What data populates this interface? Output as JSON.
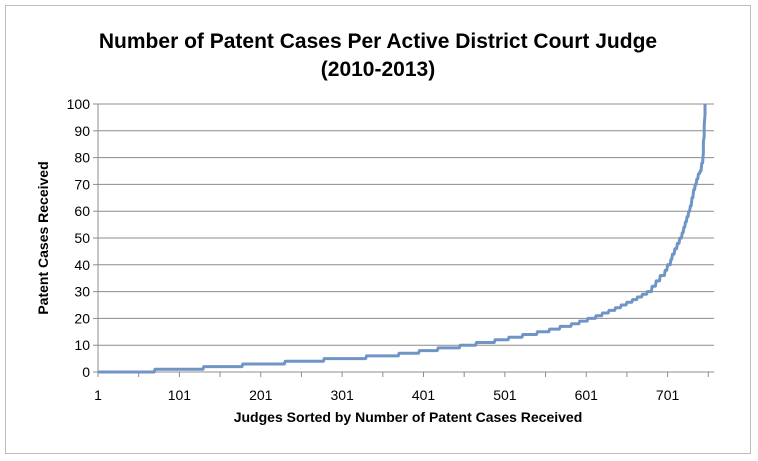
{
  "chart_data": {
    "type": "line",
    "title": "Number of Patent Cases Per Active District Court Judge",
    "subtitle": "(2010-2013)",
    "xlabel": "Judges Sorted by Number of Patent Cases Received",
    "ylabel": "Patent Cases Received",
    "xlim": [
      1,
      758
    ],
    "ylim": [
      0,
      100
    ],
    "x_ticks": [
      "1",
      "101",
      "201",
      "301",
      "401",
      "501",
      "601",
      "701"
    ],
    "y_ticks": [
      "0",
      "10",
      "20",
      "30",
      "40",
      "50",
      "60",
      "70",
      "80",
      "90",
      "100"
    ],
    "grid": "horizontal",
    "legend": "none",
    "line_color": "#6f95c6",
    "series": [
      {
        "x": [
          1,
          70,
          71,
          130,
          131,
          178,
          179,
          230,
          231,
          278,
          279,
          330,
          331,
          370,
          371,
          395,
          396,
          418,
          419,
          445,
          446,
          465,
          466,
          488,
          489,
          505,
          506,
          522,
          523,
          540,
          541,
          555,
          556,
          568,
          569,
          582,
          583,
          592,
          593,
          602,
          603,
          612,
          613,
          620,
          621,
          628,
          629,
          636,
          637,
          643,
          644,
          650,
          651,
          657,
          658,
          663,
          664,
          669,
          670,
          675,
          676,
          681,
          682,
          686,
          687,
          691,
          692,
          697,
          698,
          700,
          701,
          704,
          705,
          706,
          707,
          709,
          710,
          712,
          713,
          715,
          716,
          718,
          719,
          720,
          721,
          722,
          723,
          724,
          725,
          726,
          727,
          728,
          729,
          730,
          731,
          732,
          733,
          734,
          735,
          736,
          737,
          738,
          739,
          740,
          741,
          742,
          743,
          744,
          745,
          745,
          746,
          746,
          747,
          747
        ],
        "y": [
          0,
          0,
          1,
          1,
          2,
          2,
          3,
          3,
          4,
          4,
          5,
          5,
          6,
          6,
          7,
          7,
          8,
          8,
          9,
          9,
          10,
          10,
          11,
          11,
          12,
          12,
          13,
          13,
          14,
          14,
          15,
          15,
          16,
          16,
          17,
          17,
          18,
          18,
          19,
          19,
          20,
          20,
          21,
          21,
          22,
          22,
          23,
          23,
          24,
          24,
          25,
          25,
          26,
          26,
          27,
          27,
          28,
          28,
          29,
          29,
          30,
          30,
          32,
          32,
          34,
          34,
          36,
          36,
          38,
          38,
          40,
          40,
          42,
          42,
          44,
          44,
          46,
          46,
          48,
          48,
          50,
          50,
          52,
          52,
          54,
          54,
          56,
          56,
          58,
          58,
          60,
          60,
          62,
          62,
          65,
          65,
          68,
          68,
          70,
          70,
          72,
          72,
          74,
          74,
          75,
          75,
          78,
          78,
          82,
          86,
          88,
          92,
          96,
          100
        ]
      }
    ]
  }
}
